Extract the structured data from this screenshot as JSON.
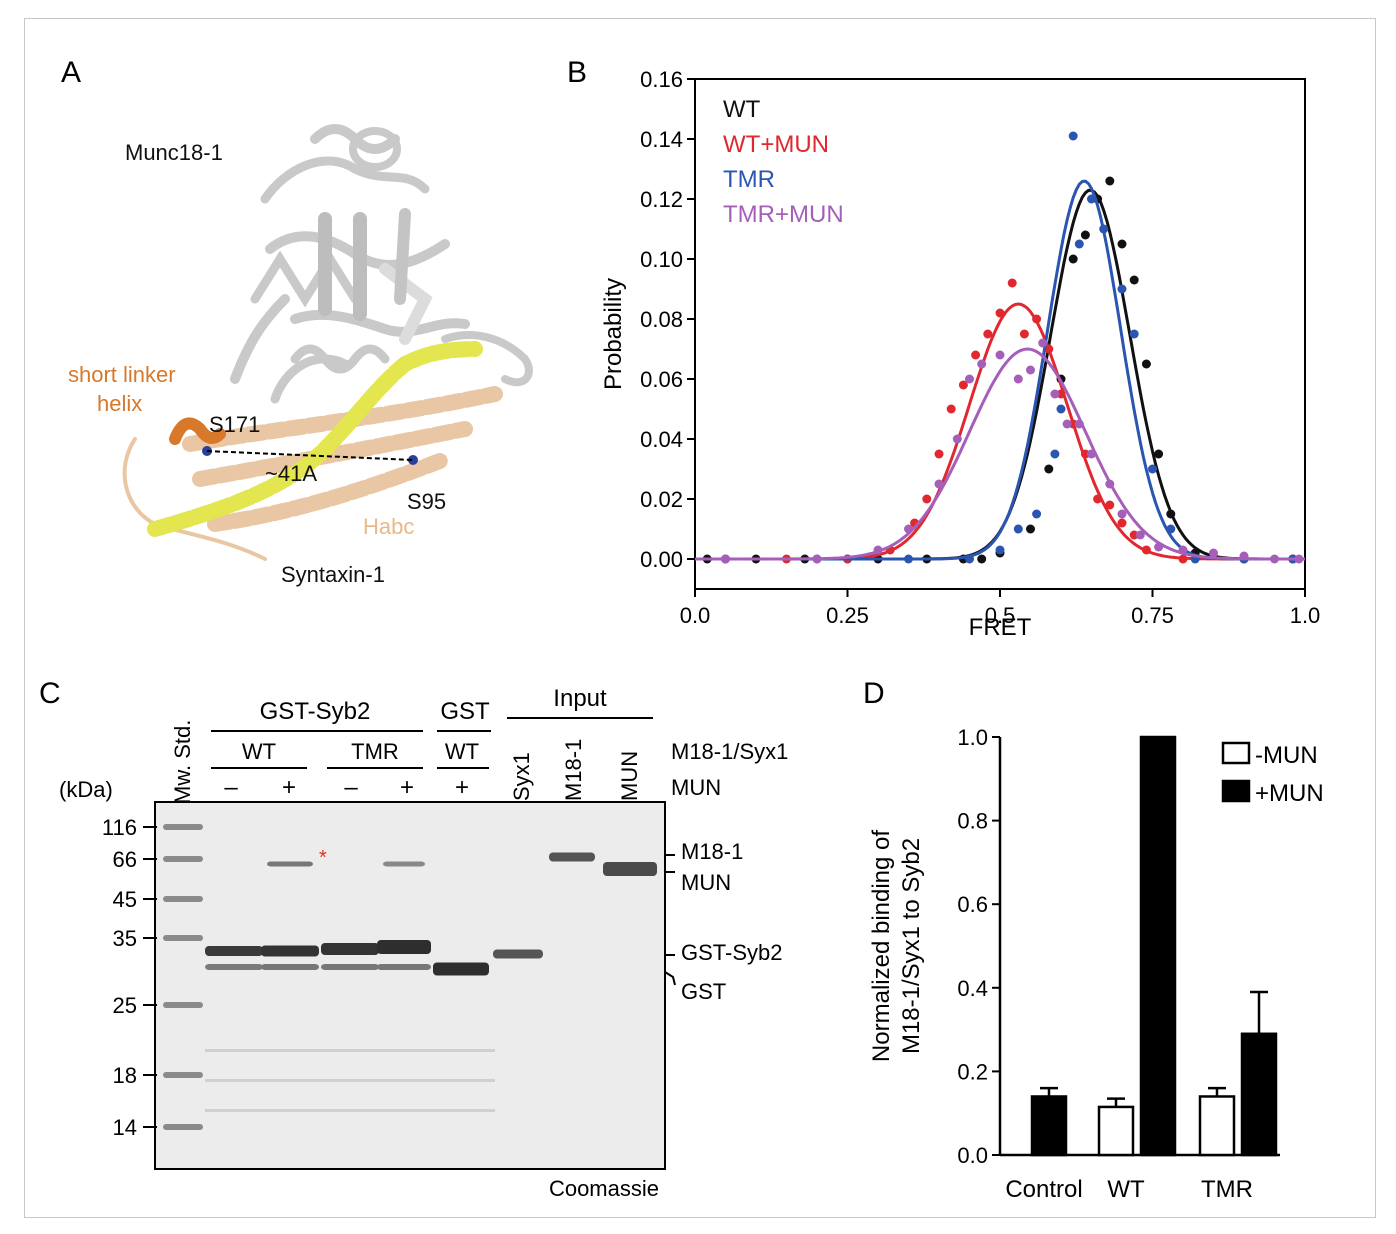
{
  "figure": {
    "panel_labels": [
      "A",
      "B",
      "C",
      "D"
    ]
  },
  "panel_a": {
    "labels": {
      "munc18": "Munc18-1",
      "short_linker": "short linker",
      "helix": "helix",
      "s171": "S171",
      "distance": "~41A",
      "s95": "S95",
      "habc": "Habc",
      "syntaxin": "Syntaxin-1"
    },
    "colors": {
      "munc18": "#cfcfcf",
      "habc": "#e9c7a4",
      "linker": "#d8782a",
      "snare": "#e4e650",
      "residue": "#2a3f9c"
    }
  },
  "panel_c": {
    "mw_std_label": "Mw. Std.",
    "kda_label": "(kDa)",
    "mw_markers": [
      "116",
      "66",
      "45",
      "35",
      "25",
      "18",
      "14"
    ],
    "groups": [
      "GST-Syb2",
      "GST",
      "Input"
    ],
    "subgroups": [
      "WT",
      "TMR",
      "WT"
    ],
    "mun_signs": [
      "–",
      "+",
      "–",
      "+",
      "+"
    ],
    "input_lanes": [
      "Syx1",
      "M18-1",
      "MUN"
    ],
    "row_label_1": "M18-1/Syx1",
    "row_label_2": "MUN",
    "band_labels": [
      "M18-1",
      "MUN",
      "GST-Syb2",
      "GST"
    ],
    "asterisk": "*",
    "stain": "Coomassie",
    "colors": {
      "gel_bg": "#ececec",
      "band": "#3a3a3a",
      "asterisk": "#e03020"
    }
  },
  "chart_data": [
    {
      "type": "scatter",
      "panel": "B",
      "xlabel": "FRET",
      "ylabel": "Probability",
      "xlim": [
        0.0,
        1.0
      ],
      "ylim": [
        -0.01,
        0.16
      ],
      "x_ticks": [
        "0.0",
        "0.25",
        "0.5",
        "0.75",
        "1.0"
      ],
      "y_ticks": [
        "0.00",
        "0.02",
        "0.04",
        "0.06",
        "0.08",
        "0.10",
        "0.12",
        "0.14",
        "0.16"
      ],
      "legend": "top-left",
      "series": [
        {
          "name": "WT",
          "color": "#111111",
          "fit": {
            "amp": 0.123,
            "mu": 0.648,
            "sigma": 0.065
          },
          "points": [
            [
              0.02,
              0.0
            ],
            [
              0.1,
              0.0
            ],
            [
              0.18,
              0.0
            ],
            [
              0.25,
              0.0
            ],
            [
              0.3,
              0.0
            ],
            [
              0.38,
              0.0
            ],
            [
              0.44,
              0.0
            ],
            [
              0.47,
              0.0
            ],
            [
              0.5,
              0.002
            ],
            [
              0.55,
              0.01
            ],
            [
              0.58,
              0.03
            ],
            [
              0.6,
              0.06
            ],
            [
              0.62,
              0.1
            ],
            [
              0.64,
              0.108
            ],
            [
              0.66,
              0.12
            ],
            [
              0.68,
              0.126
            ],
            [
              0.7,
              0.105
            ],
            [
              0.72,
              0.093
            ],
            [
              0.74,
              0.065
            ],
            [
              0.76,
              0.035
            ],
            [
              0.78,
              0.015
            ],
            [
              0.82,
              0.002
            ],
            [
              0.9,
              0.0
            ],
            [
              0.98,
              0.0
            ]
          ]
        },
        {
          "name": "WT+MUN",
          "color": "#e0282e",
          "fit": {
            "amp": 0.085,
            "mu": 0.53,
            "sigma": 0.08
          },
          "points": [
            [
              0.05,
              0.0
            ],
            [
              0.15,
              0.0
            ],
            [
              0.25,
              0.0
            ],
            [
              0.32,
              0.003
            ],
            [
              0.36,
              0.012
            ],
            [
              0.38,
              0.02
            ],
            [
              0.4,
              0.035
            ],
            [
              0.42,
              0.05
            ],
            [
              0.44,
              0.058
            ],
            [
              0.46,
              0.068
            ],
            [
              0.48,
              0.075
            ],
            [
              0.5,
              0.082
            ],
            [
              0.52,
              0.092
            ],
            [
              0.54,
              0.075
            ],
            [
              0.56,
              0.08
            ],
            [
              0.58,
              0.07
            ],
            [
              0.6,
              0.055
            ],
            [
              0.62,
              0.045
            ],
            [
              0.64,
              0.035
            ],
            [
              0.66,
              0.02
            ],
            [
              0.68,
              0.018
            ],
            [
              0.7,
              0.012
            ],
            [
              0.72,
              0.008
            ],
            [
              0.74,
              0.003
            ],
            [
              0.8,
              0.0
            ],
            [
              0.9,
              0.0
            ],
            [
              0.98,
              0.0
            ]
          ]
        },
        {
          "name": "TMR",
          "color": "#2a55b0",
          "fit": {
            "amp": 0.126,
            "mu": 0.638,
            "sigma": 0.06
          },
          "points": [
            [
              0.05,
              0.0
            ],
            [
              0.2,
              0.0
            ],
            [
              0.35,
              0.0
            ],
            [
              0.45,
              0.0
            ],
            [
              0.5,
              0.003
            ],
            [
              0.53,
              0.01
            ],
            [
              0.56,
              0.015
            ],
            [
              0.59,
              0.035
            ],
            [
              0.6,
              0.05
            ],
            [
              0.62,
              0.141
            ],
            [
              0.63,
              0.105
            ],
            [
              0.65,
              0.12
            ],
            [
              0.67,
              0.11
            ],
            [
              0.7,
              0.09
            ],
            [
              0.72,
              0.075
            ],
            [
              0.75,
              0.03
            ],
            [
              0.78,
              0.01
            ],
            [
              0.82,
              0.0
            ],
            [
              0.9,
              0.0
            ],
            [
              0.98,
              0.0
            ]
          ]
        },
        {
          "name": "TMR+MUN",
          "color": "#a65fb8",
          "fit": {
            "amp": 0.07,
            "mu": 0.545,
            "sigma": 0.095
          },
          "points": [
            [
              0.05,
              0.0
            ],
            [
              0.2,
              0.0
            ],
            [
              0.3,
              0.003
            ],
            [
              0.35,
              0.01
            ],
            [
              0.4,
              0.025
            ],
            [
              0.43,
              0.04
            ],
            [
              0.45,
              0.06
            ],
            [
              0.47,
              0.065
            ],
            [
              0.5,
              0.068
            ],
            [
              0.53,
              0.06
            ],
            [
              0.55,
              0.063
            ],
            [
              0.57,
              0.072
            ],
            [
              0.59,
              0.055
            ],
            [
              0.61,
              0.045
            ],
            [
              0.63,
              0.045
            ],
            [
              0.65,
              0.035
            ],
            [
              0.68,
              0.025
            ],
            [
              0.7,
              0.015
            ],
            [
              0.73,
              0.008
            ],
            [
              0.76,
              0.004
            ],
            [
              0.8,
              0.003
            ],
            [
              0.85,
              0.002
            ],
            [
              0.9,
              0.001
            ],
            [
              0.95,
              0.0
            ],
            [
              0.99,
              0.0
            ]
          ]
        }
      ]
    },
    {
      "type": "bar",
      "panel": "D",
      "categories": [
        "Control",
        "WT",
        "TMR"
      ],
      "ylabel": "Normalized binding of\nM18-1/Syx1 to Syb2",
      "ylim": [
        0.0,
        1.0
      ],
      "y_ticks": [
        "0.0",
        "0.2",
        "0.4",
        "0.6",
        "0.8",
        "1.0"
      ],
      "legend": "top-right",
      "series": [
        {
          "name": "-MUN",
          "fill": "#ffffff",
          "values": [
            null,
            0.115,
            0.14
          ],
          "errors": [
            null,
            0.02,
            0.02
          ]
        },
        {
          "name": "+MUN",
          "fill": "#000000",
          "values": [
            0.14,
            1.0,
            0.29
          ],
          "errors": [
            0.02,
            0.0,
            0.1
          ]
        }
      ]
    }
  ]
}
